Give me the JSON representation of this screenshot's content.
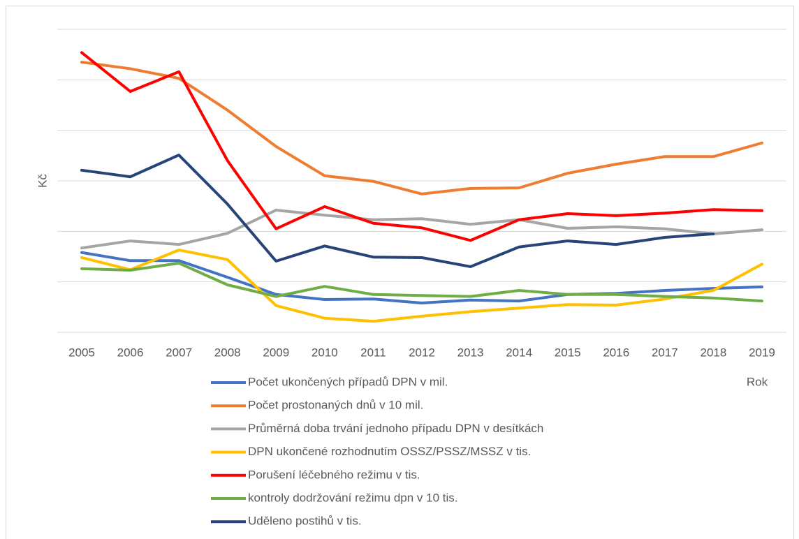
{
  "chart_data": {
    "type": "line",
    "x_label": "Rok",
    "y_label": "Kč",
    "categories": [
      "2005",
      "2006",
      "2007",
      "2008",
      "2009",
      "2010",
      "2011",
      "2012",
      "2013",
      "2014",
      "2015",
      "2016",
      "2017",
      "2018",
      "2019"
    ],
    "series": [
      {
        "name": "Počet ukončených případů DPN v mil.",
        "color": "#4472c4",
        "values": [
          1.58,
          1.42,
          1.42,
          1.09,
          0.75,
          0.65,
          0.66,
          0.58,
          0.64,
          0.62,
          0.75,
          0.77,
          0.83,
          0.87,
          0.9
        ]
      },
      {
        "name": "Počet prostonaných dnů v 10 mil.",
        "color": "#ed7d31",
        "values": [
          5.35,
          5.22,
          5.03,
          4.4,
          3.68,
          3.1,
          2.99,
          2.74,
          2.85,
          2.86,
          3.15,
          3.33,
          3.48,
          3.48,
          3.75
        ]
      },
      {
        "name": "Průměrná doba trvání jednoho případu DPN v desítkách",
        "color": "#a5a5a5",
        "values": [
          1.67,
          1.81,
          1.74,
          1.96,
          2.42,
          2.32,
          2.23,
          2.25,
          2.14,
          2.23,
          2.06,
          2.09,
          2.05,
          1.95,
          2.03
        ]
      },
      {
        "name": "DPN ukončené rozhodnutím OSSZ/PSSZ/MSSZ v tis.",
        "color": "#ffc000",
        "values": [
          1.48,
          1.24,
          1.63,
          1.44,
          0.53,
          0.28,
          0.22,
          0.32,
          0.41,
          0.48,
          0.55,
          0.54,
          0.66,
          0.83,
          1.35
        ]
      },
      {
        "name": "Porušení léčebného režimu v tis.",
        "color": "#ff0000",
        "values": [
          5.54,
          4.77,
          5.16,
          3.4,
          2.05,
          2.49,
          2.16,
          2.07,
          1.82,
          2.23,
          2.35,
          2.31,
          2.36,
          2.43,
          2.41
        ]
      },
      {
        "name": "kontroly dodržování režimu dpn v 10 tis.",
        "color": "#70ad47",
        "values": [
          1.26,
          1.23,
          1.37,
          0.94,
          0.71,
          0.91,
          0.75,
          0.73,
          0.71,
          0.83,
          0.75,
          0.75,
          0.71,
          0.68,
          0.62
        ]
      },
      {
        "name": "Uděleno postihů v tis.",
        "color": "#264478",
        "values": [
          3.21,
          3.08,
          3.51,
          2.54,
          1.41,
          1.71,
          1.49,
          1.48,
          1.3,
          1.69,
          1.81,
          1.74,
          1.88,
          1.95,
          null
        ]
      }
    ],
    "ylim": [
      0,
      6
    ],
    "yticks": [
      0,
      1,
      2,
      3,
      4,
      5,
      6
    ],
    "grid": true,
    "ytick_labels": false
  }
}
